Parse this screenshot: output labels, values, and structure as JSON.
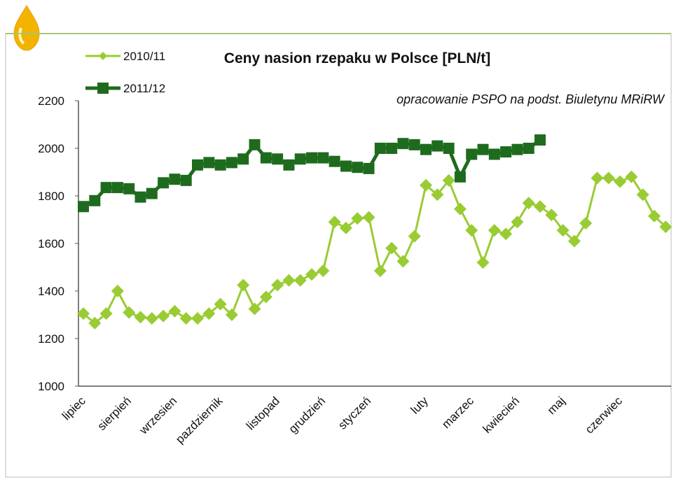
{
  "chart_data": {
    "type": "line",
    "title": "Ceny nasion rzepaku w Polsce [PLN/t]",
    "subtitle": "opracowanie PSPO na podst. Biuletynu MRiRW",
    "categories": [
      "lipiec",
      null,
      null,
      null,
      "sierpień",
      null,
      null,
      null,
      "wrzesien",
      null,
      null,
      null,
      "pazdziernik",
      null,
      null,
      null,
      null,
      "listopad",
      null,
      null,
      null,
      "grudzień",
      null,
      null,
      null,
      "styczeń",
      null,
      null,
      null,
      null,
      "luty",
      null,
      null,
      null,
      "marzec",
      null,
      null,
      null,
      "kwiecień",
      null,
      null,
      null,
      "maj",
      null,
      null,
      null,
      null,
      "czerwiec",
      null,
      null,
      null,
      null
    ],
    "series": [
      {
        "name": "2010/11",
        "color": "#99cc33",
        "marker": "diamond",
        "values": [
          1305,
          1265,
          1305,
          1400,
          1310,
          1290,
          1285,
          1295,
          1315,
          1285,
          1285,
          1305,
          1345,
          1300,
          1425,
          1325,
          1375,
          1425,
          1445,
          1445,
          1470,
          1485,
          1690,
          1665,
          1705,
          1710,
          1485,
          1580,
          1525,
          1630,
          1845,
          1805,
          1865,
          1745,
          1655,
          1520,
          1655,
          1640,
          1690,
          1770,
          1755,
          1720,
          1655,
          1610,
          1685,
          1875,
          1875,
          1860,
          1880,
          1805,
          1715,
          1670
        ]
      },
      {
        "name": "2011/12",
        "color": "#1e6b1e",
        "marker": "square",
        "values": [
          1755,
          1780,
          1835,
          1835,
          1830,
          1795,
          1810,
          1855,
          1870,
          1865,
          1930,
          1940,
          1930,
          1940,
          1955,
          2015,
          1960,
          1955,
          1930,
          1955,
          1960,
          1960,
          1945,
          1925,
          1920,
          1915,
          2000,
          2000,
          2020,
          2015,
          1995,
          2010,
          2000,
          1880,
          1975,
          1995,
          1975,
          1985,
          1995,
          2000,
          2035,
          null,
          null,
          null,
          null,
          null,
          null,
          null,
          null,
          null,
          null,
          null
        ]
      }
    ],
    "ylim": [
      1000,
      2200
    ],
    "yticks": [
      1000,
      1200,
      1400,
      1600,
      1800,
      2000,
      2200
    ],
    "grid": false
  }
}
